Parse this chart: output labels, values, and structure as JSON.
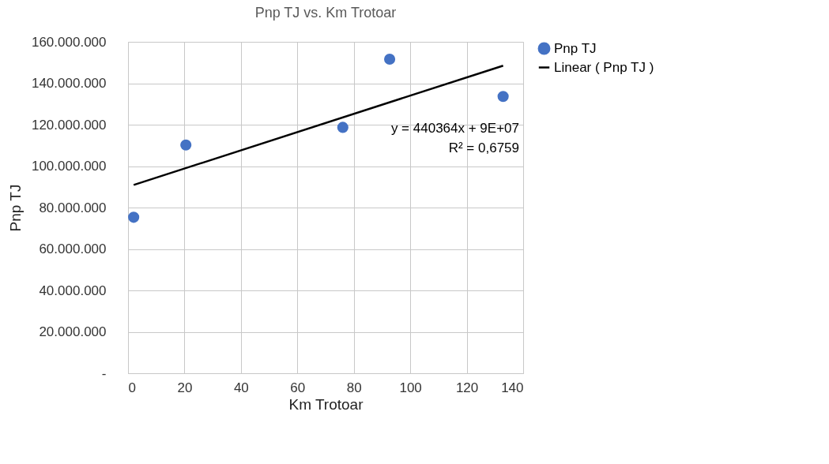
{
  "chart_data": {
    "type": "scatter",
    "title": "Pnp TJ  vs. Km Trotoar",
    "xlabel": "Km Trotoar",
    "ylabel": "Pnp TJ",
    "series": [
      {
        "name": "Pnp TJ",
        "marker": "circle",
        "color": "#4472c4",
        "x": [
          2.0,
          20.5,
          76.1,
          92.7,
          132.9
        ],
        "values": [
          75300000,
          110200000,
          118700000,
          151600000,
          133600000
        ]
      },
      {
        "name": "Linear ( Pnp TJ )",
        "type": "line",
        "marker": "none",
        "color": "#000000",
        "x": [
          2.0,
          132.9
        ],
        "values": [
          90900000,
          148500000
        ]
      }
    ],
    "xlim": [
      0,
      140
    ],
    "xticks": [
      0,
      20,
      40,
      60,
      80,
      100,
      120,
      140
    ],
    "ylim": [
      0,
      160000000
    ],
    "yticks": [
      {
        "value": 0,
        "label": "-"
      },
      {
        "value": 20000000,
        "label": "20.000.000"
      },
      {
        "value": 40000000,
        "label": "40.000.000"
      },
      {
        "value": 60000000,
        "label": "60.000.000"
      },
      {
        "value": 80000000,
        "label": "80.000.000"
      },
      {
        "value": 100000000,
        "label": "100.000.000"
      },
      {
        "value": 120000000,
        "label": "120.000.000"
      },
      {
        "value": 140000000,
        "label": "140.000.000"
      },
      {
        "value": 160000000,
        "label": "160.000.000"
      }
    ],
    "annotations": [
      "y = 440364x + 9E+07",
      "R² = 0,6759"
    ],
    "grid": true,
    "legend": "right",
    "line_style": "solid"
  }
}
